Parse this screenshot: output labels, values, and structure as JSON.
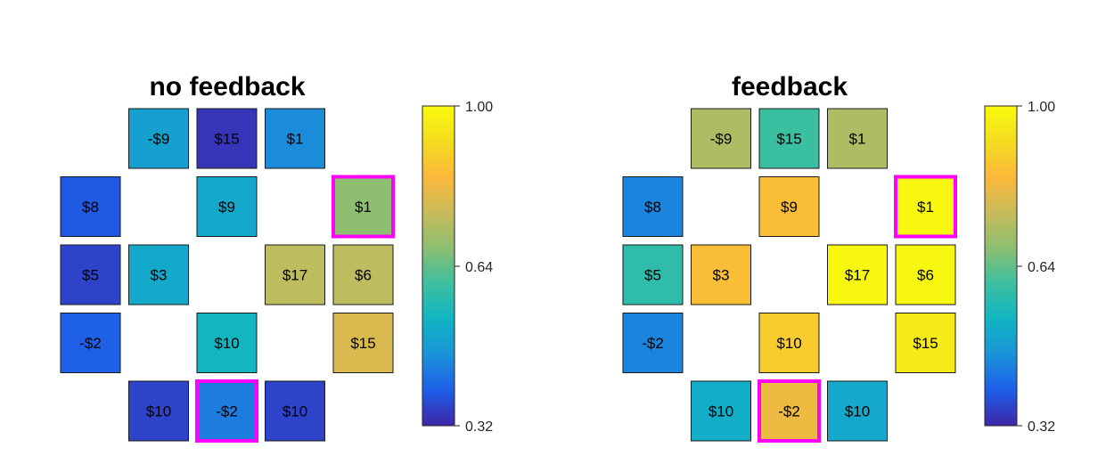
{
  "chart_data": [
    {
      "type": "heatmap",
      "title": "no feedback",
      "grid_rows": 5,
      "grid_cols": 5,
      "cells": [
        {
          "row": 0,
          "col": 1,
          "label": "-$9",
          "value": 0.5
        },
        {
          "row": 0,
          "col": 2,
          "label": "$15",
          "value": 0.34
        },
        {
          "row": 0,
          "col": 3,
          "label": "$1",
          "value": 0.46
        },
        {
          "row": 1,
          "col": 0,
          "label": "$8",
          "value": 0.39
        },
        {
          "row": 1,
          "col": 2,
          "label": "$9",
          "value": 0.52
        },
        {
          "row": 1,
          "col": 4,
          "label": "$1",
          "value": 0.7,
          "highlight": true
        },
        {
          "row": 2,
          "col": 0,
          "label": "$5",
          "value": 0.36
        },
        {
          "row": 2,
          "col": 1,
          "label": "$3",
          "value": 0.52
        },
        {
          "row": 2,
          "col": 3,
          "label": "$17",
          "value": 0.76
        },
        {
          "row": 2,
          "col": 4,
          "label": "$6",
          "value": 0.76
        },
        {
          "row": 3,
          "col": 0,
          "label": "-$2",
          "value": 0.4
        },
        {
          "row": 3,
          "col": 2,
          "label": "$10",
          "value": 0.55
        },
        {
          "row": 3,
          "col": 4,
          "label": "$15",
          "value": 0.8
        },
        {
          "row": 4,
          "col": 1,
          "label": "$10",
          "value": 0.36
        },
        {
          "row": 4,
          "col": 2,
          "label": "-$2",
          "value": 0.44,
          "highlight": true
        },
        {
          "row": 4,
          "col": 3,
          "label": "$10",
          "value": 0.36
        }
      ],
      "colorbar": {
        "min": 0.32,
        "max": 1.0,
        "ticks": [
          "1.00",
          "0.64",
          "0.32"
        ]
      },
      "highlight_color": "#ff00ff"
    },
    {
      "type": "heatmap",
      "title": "feedback",
      "grid_rows": 5,
      "grid_cols": 5,
      "cells": [
        {
          "row": 0,
          "col": 1,
          "label": "-$9",
          "value": 0.74
        },
        {
          "row": 0,
          "col": 2,
          "label": "$15",
          "value": 0.62
        },
        {
          "row": 0,
          "col": 3,
          "label": "$1",
          "value": 0.74
        },
        {
          "row": 1,
          "col": 0,
          "label": "$8",
          "value": 0.45
        },
        {
          "row": 1,
          "col": 2,
          "label": "$9",
          "value": 0.86
        },
        {
          "row": 1,
          "col": 4,
          "label": "$1",
          "value": 0.99,
          "highlight": true
        },
        {
          "row": 2,
          "col": 0,
          "label": "$5",
          "value": 0.6
        },
        {
          "row": 2,
          "col": 1,
          "label": "$3",
          "value": 0.86
        },
        {
          "row": 2,
          "col": 3,
          "label": "$17",
          "value": 0.99
        },
        {
          "row": 2,
          "col": 4,
          "label": "$6",
          "value": 0.99
        },
        {
          "row": 3,
          "col": 0,
          "label": "-$2",
          "value": 0.45
        },
        {
          "row": 3,
          "col": 2,
          "label": "$10",
          "value": 0.89
        },
        {
          "row": 3,
          "col": 4,
          "label": "$15",
          "value": 0.96
        },
        {
          "row": 4,
          "col": 1,
          "label": "$10",
          "value": 0.53
        },
        {
          "row": 4,
          "col": 2,
          "label": "-$2",
          "value": 0.83,
          "highlight": true
        },
        {
          "row": 4,
          "col": 3,
          "label": "$10",
          "value": 0.52
        }
      ],
      "colorbar": {
        "min": 0.32,
        "max": 1.0,
        "ticks": [
          "1.00",
          "0.64",
          "0.32"
        ]
      },
      "highlight_color": "#ff00ff"
    }
  ],
  "colormap": [
    "#3e26a8",
    "#1e5ee8",
    "#1a93d8",
    "#10b5c2",
    "#3cbfa0",
    "#8cbe70",
    "#c8bb5a",
    "#fbb93a",
    "#f4dc20",
    "#f9fb0e"
  ]
}
